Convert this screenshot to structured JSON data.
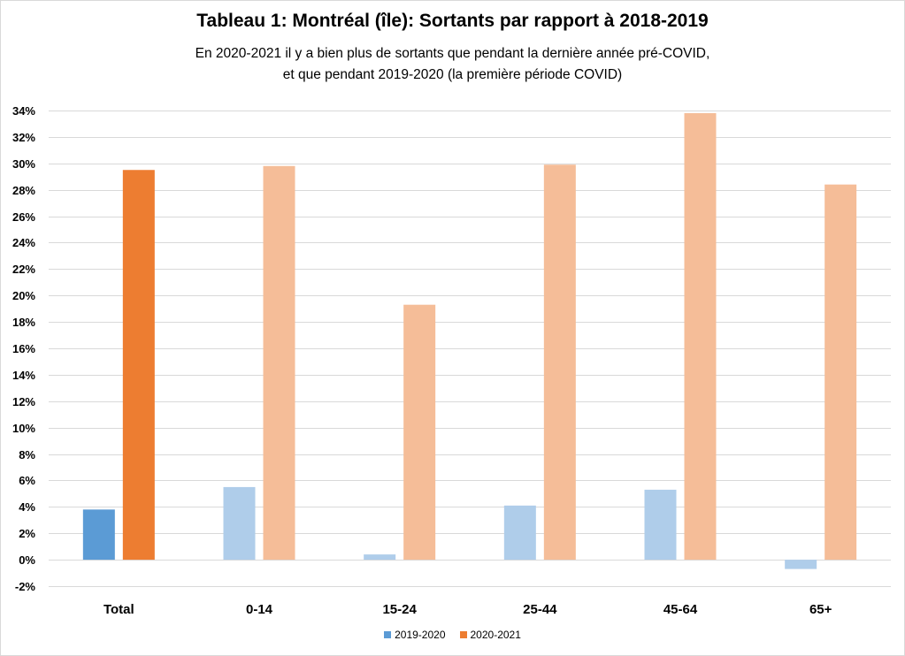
{
  "chart_data": {
    "type": "bar",
    "title": "Tableau 1: Montréal (île): Sortants par rapport à 2018-2019",
    "subtitle_line1": "En 2020-2021 il y a bien plus de sortants que pendant la dernière année pré-COVID,",
    "subtitle_line2": "et que pendant 2019-2020 (la première période COVID)",
    "xlabel": "",
    "ylabel": "",
    "ylim": [
      -2,
      34
    ],
    "yticks": [
      -2,
      0,
      2,
      4,
      6,
      8,
      10,
      12,
      14,
      16,
      18,
      20,
      22,
      24,
      26,
      28,
      30,
      32,
      34
    ],
    "ytick_labels": [
      "-2%",
      "0%",
      "2%",
      "4%",
      "6%",
      "8%",
      "10%",
      "12%",
      "14%",
      "16%",
      "18%",
      "20%",
      "22%",
      "24%",
      "26%",
      "28%",
      "30%",
      "32%",
      "34%"
    ],
    "grid": true,
    "legend_position": "bottom",
    "categories": [
      "Total",
      "0-14",
      "15-24",
      "25-44",
      "45-64",
      "65+"
    ],
    "series": [
      {
        "name": "2019-2020",
        "values": [
          3.8,
          5.5,
          0.4,
          4.1,
          5.3,
          -0.7
        ],
        "colors": [
          "#5b9bd5",
          "#afcdea",
          "#afcdea",
          "#afcdea",
          "#afcdea",
          "#afcdea"
        ]
      },
      {
        "name": "2020-2021",
        "values": [
          29.5,
          29.8,
          19.3,
          29.9,
          33.8,
          28.4
        ],
        "colors": [
          "#ed7d31",
          "#f5bd98",
          "#f5bd98",
          "#f5bd98",
          "#f5bd98",
          "#f5bd98"
        ]
      }
    ],
    "legend_colors": [
      "#5b9bd5",
      "#ed7d31"
    ]
  }
}
